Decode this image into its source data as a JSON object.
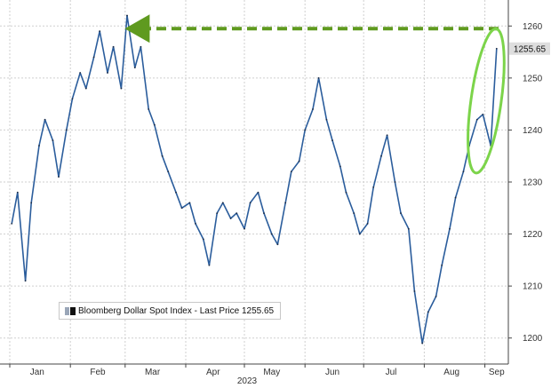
{
  "chart_data": {
    "type": "line",
    "title": "",
    "xlabel": "",
    "ylabel": "",
    "x_tick_labels": [
      "Jan",
      "Feb",
      "Mar",
      "Apr",
      "May",
      "Jun",
      "Jul",
      "Aug",
      "Sep"
    ],
    "x_year_label": "2023",
    "y_tick_labels": [
      "1200",
      "1210",
      "1220",
      "1230",
      "1240",
      "1250",
      "1260"
    ],
    "ylim": [
      1195,
      1265
    ],
    "grid": "horizontal dashed",
    "y_axis_side": "right",
    "legend_placement": "bottom-left",
    "last_value_label": "1255.65",
    "series": [
      {
        "name": "Bloomberg Dollar Spot Index - Last Price",
        "legend_label": "Bloomberg Dollar Spot Index - Last Price 1255.65",
        "x": [
          "2023-01-02",
          "2023-01-05",
          "2023-01-09",
          "2023-01-12",
          "2023-01-16",
          "2023-01-19",
          "2023-01-23",
          "2023-01-26",
          "2023-01-30",
          "2023-02-02",
          "2023-02-06",
          "2023-02-09",
          "2023-02-13",
          "2023-02-16",
          "2023-02-20",
          "2023-02-23",
          "2023-02-27",
          "2023-03-02",
          "2023-03-06",
          "2023-03-09",
          "2023-03-13",
          "2023-03-16",
          "2023-03-20",
          "2023-03-23",
          "2023-03-27",
          "2023-03-30",
          "2023-04-03",
          "2023-04-06",
          "2023-04-10",
          "2023-04-13",
          "2023-04-17",
          "2023-04-20",
          "2023-04-24",
          "2023-04-27",
          "2023-05-01",
          "2023-05-04",
          "2023-05-08",
          "2023-05-11",
          "2023-05-15",
          "2023-05-18",
          "2023-05-22",
          "2023-05-25",
          "2023-05-29",
          "2023-06-01",
          "2023-06-05",
          "2023-06-08",
          "2023-06-12",
          "2023-06-15",
          "2023-06-19",
          "2023-06-22",
          "2023-06-26",
          "2023-06-29",
          "2023-07-03",
          "2023-07-06",
          "2023-07-10",
          "2023-07-13",
          "2023-07-17",
          "2023-07-20",
          "2023-07-24",
          "2023-07-27",
          "2023-07-31",
          "2023-08-03",
          "2023-08-07",
          "2023-08-10",
          "2023-08-14",
          "2023-08-17",
          "2023-08-21",
          "2023-08-24",
          "2023-08-28",
          "2023-08-31",
          "2023-09-04",
          "2023-09-07"
        ],
        "values": [
          1222,
          1228,
          1211,
          1226,
          1237,
          1242,
          1238,
          1231,
          1240,
          1246,
          1251,
          1248,
          1254,
          1259,
          1251,
          1256,
          1248,
          1262,
          1252,
          1256,
          1244,
          1241,
          1235,
          1232,
          1228,
          1225,
          1226,
          1222,
          1219,
          1214,
          1224,
          1226,
          1223,
          1224,
          1221,
          1226,
          1228,
          1224,
          1220,
          1218,
          1226,
          1232,
          1234,
          1240,
          1244,
          1250,
          1242,
          1238,
          1233,
          1228,
          1224,
          1220,
          1222,
          1229,
          1235,
          1239,
          1230,
          1224,
          1221,
          1209,
          1199,
          1205,
          1208,
          1214,
          1221,
          1227,
          1232,
          1237,
          1242,
          1243,
          1237,
          1255.65
        ]
      }
    ],
    "annotation": {
      "type": "dashed-arrow",
      "color": "#5f9a1f",
      "from_x": "2023-09-08",
      "from_y": 1259.5,
      "to_x": "2023-02-27",
      "to_y": 1259.5
    },
    "highlight_ellipse_color": "#7cd44a",
    "line_color": "#2b5d9c",
    "axis_color": "#444444",
    "grid_color": "#cfcfcf",
    "badge_color": "#dedede"
  }
}
